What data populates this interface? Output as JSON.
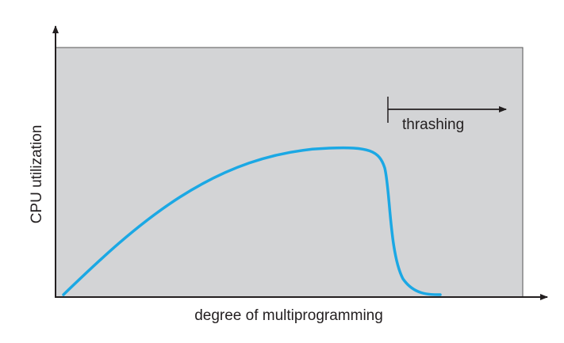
{
  "diagram": {
    "ylabel": "CPU utilization",
    "xlabel": "degree of multiprogramming",
    "annotation": "thrashing",
    "colors": {
      "plot_background": "#d3d4d6",
      "curve": "#1ba8e4",
      "axes": "#231f20"
    }
  }
}
